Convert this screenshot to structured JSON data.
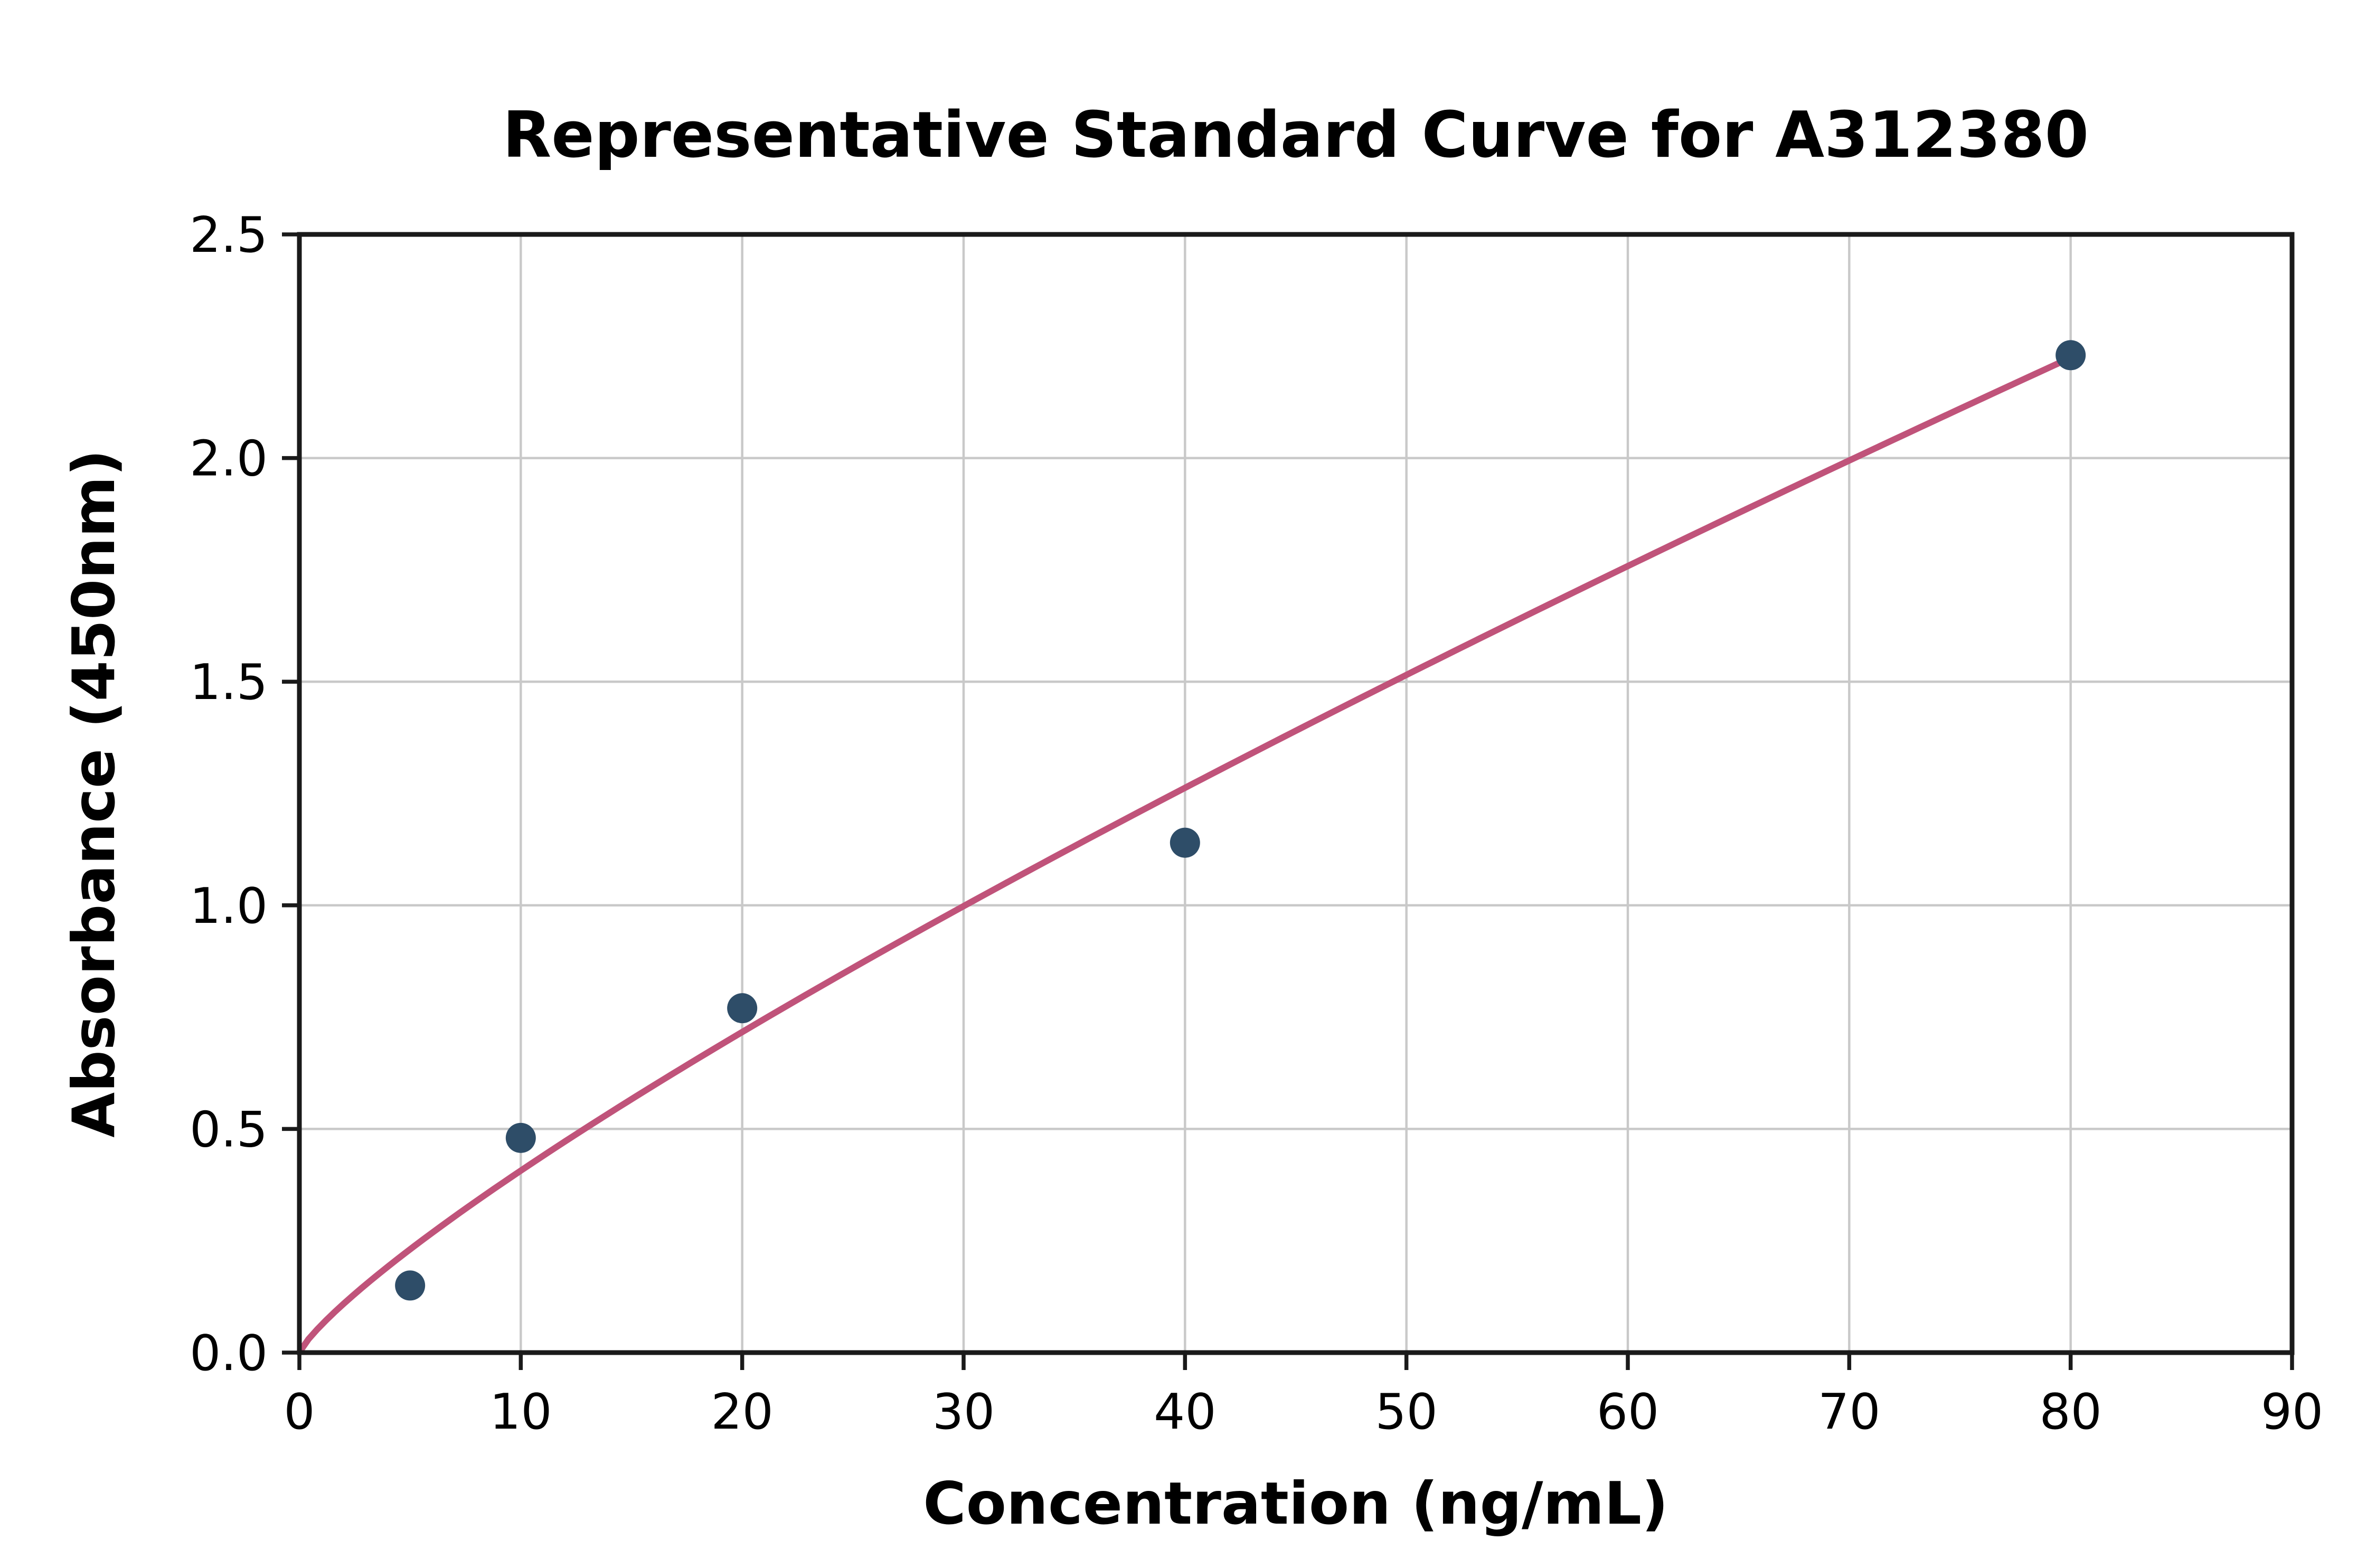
{
  "chart_data": {
    "type": "scatter",
    "title": "Representative Standard Curve for A312380",
    "xlabel": "Concentration (ng/mL)",
    "ylabel": "Absorbance (450nm)",
    "xlim": [
      0,
      90
    ],
    "ylim": [
      0,
      2.5
    ],
    "x_ticks": [
      0,
      10,
      20,
      30,
      40,
      50,
      60,
      70,
      80,
      90
    ],
    "x_tick_labels": [
      "0",
      "10",
      "20",
      "30",
      "40",
      "50",
      "60",
      "70",
      "80",
      "90"
    ],
    "y_ticks": [
      0,
      0.5,
      1.0,
      1.5,
      2.0,
      2.5
    ],
    "y_tick_labels": [
      "0.0",
      "0.5",
      "1.0",
      "1.5",
      "2.0",
      "2.5"
    ],
    "grid": true,
    "legend": "none",
    "points": [
      {
        "x": 5,
        "y": 0.15
      },
      {
        "x": 10,
        "y": 0.48
      },
      {
        "x": 20,
        "y": 0.77
      },
      {
        "x": 40,
        "y": 1.14
      },
      {
        "x": 80,
        "y": 2.23
      }
    ],
    "trend_curve": {
      "type": "power",
      "a": 0.062,
      "b": 0.817,
      "x_start": 0,
      "x_end": 80
    },
    "colors": {
      "point": "#2e4d68",
      "curve": "#c0537a",
      "grid": "#c9c9c9",
      "spine": "#1a1a1a",
      "text": "#000000",
      "background": "#ffffff"
    }
  }
}
